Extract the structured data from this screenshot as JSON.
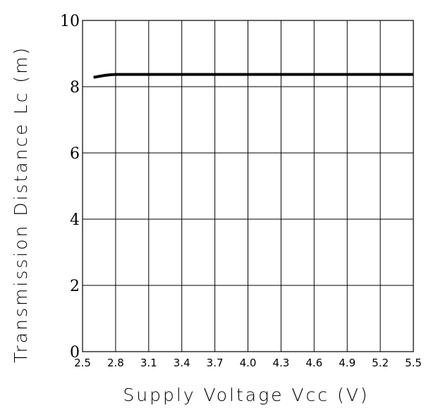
{
  "chart_data": {
    "type": "line",
    "title": "",
    "xlabel": "Supply Voltage Vcc (V)",
    "ylabel": "Transmission Distance Lc (m)",
    "xlim": [
      2.5,
      5.5
    ],
    "ylim": [
      0,
      10
    ],
    "x_ticks": [
      "2.5",
      "2.8",
      "3.1",
      "3.4",
      "3.7",
      "4.0",
      "4.3",
      "4.6",
      "4.9",
      "5.2",
      "5.5"
    ],
    "y_ticks": [
      "0",
      "2",
      "4",
      "6",
      "8",
      "10"
    ],
    "grid": true,
    "legend": "none",
    "series": [
      {
        "color": "#000000",
        "x": [
          2.6,
          2.65,
          2.7,
          2.75,
          2.8,
          3.0,
          3.5,
          4.0,
          4.5,
          5.0,
          5.5
        ],
        "y": [
          8.28,
          8.31,
          8.34,
          8.36,
          8.37,
          8.37,
          8.37,
          8.37,
          8.37,
          8.37,
          8.37
        ]
      }
    ]
  }
}
